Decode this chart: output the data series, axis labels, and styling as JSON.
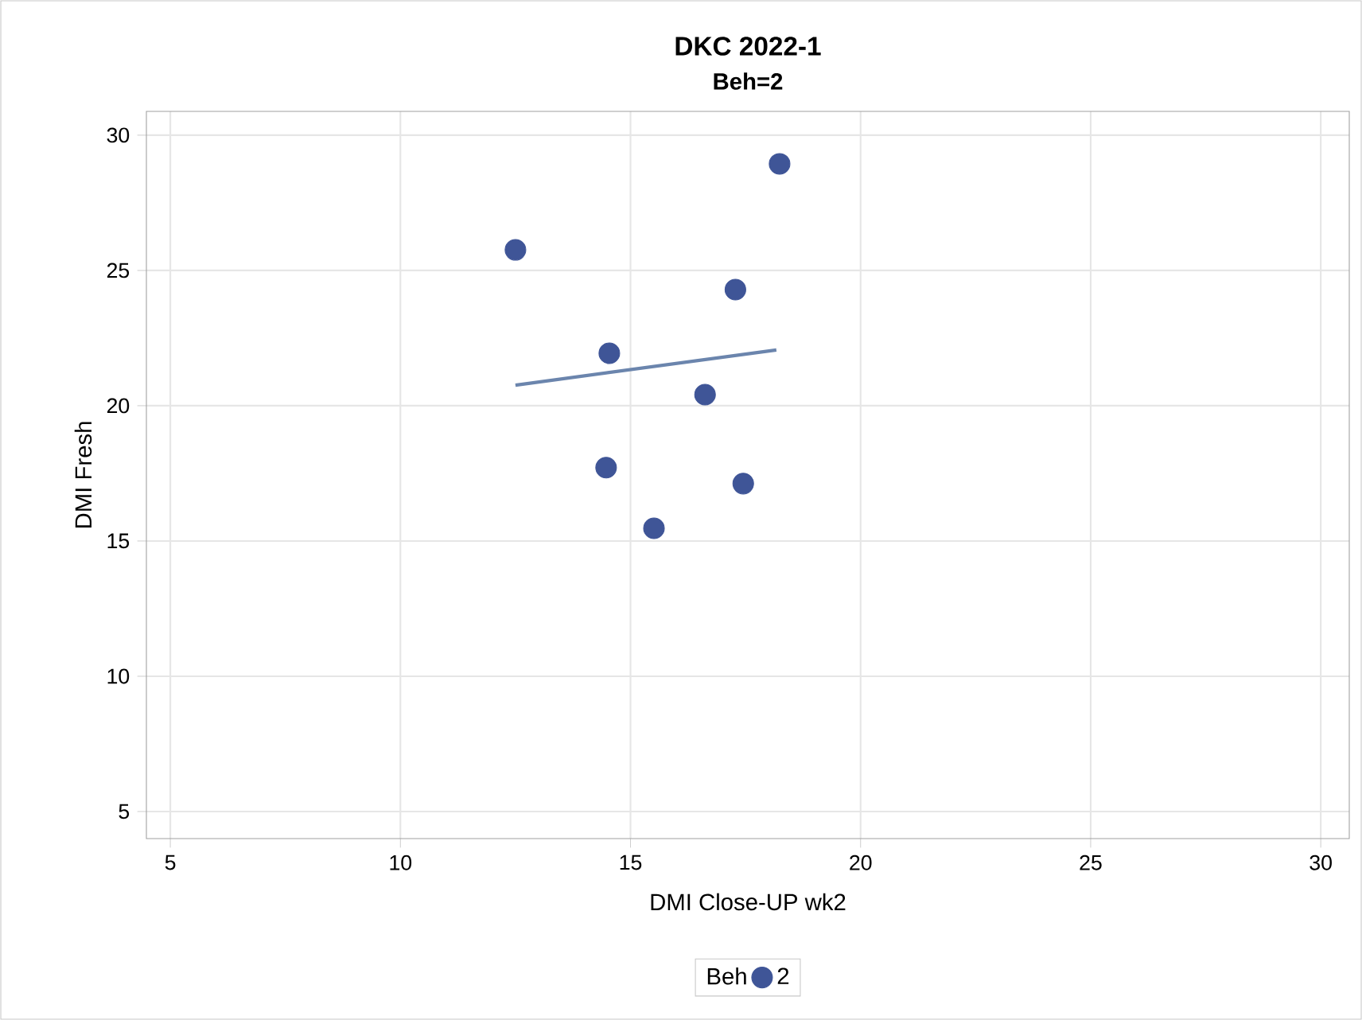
{
  "chart_data": {
    "type": "scatter",
    "title": "DKC 2022-1",
    "subtitle": "Beh=2",
    "xlabel": "DMI Close-UP wk2",
    "ylabel": "DMI Fresh",
    "legend_title": "Beh",
    "xlim": [
      4.48,
      30.62
    ],
    "ylim": [
      4.0,
      30.88
    ],
    "xticks": [
      5,
      10,
      15,
      20,
      25,
      30
    ],
    "yticks": [
      5,
      10,
      15,
      20,
      25,
      30
    ],
    "grid": true,
    "legend": "bottom",
    "series": [
      {
        "name": "2",
        "marker": "circle",
        "color": "#3f5597",
        "x": [
          12.5,
          18.24,
          17.28,
          14.54,
          16.62,
          14.47,
          17.45,
          15.51
        ],
        "values": [
          25.76,
          28.94,
          24.29,
          21.94,
          20.41,
          17.71,
          17.12,
          15.47
        ]
      },
      {
        "type": "line",
        "marker": "none",
        "color": "#6b85ad",
        "x": [
          12.5,
          18.17
        ],
        "values": [
          20.76,
          22.06
        ]
      }
    ]
  }
}
